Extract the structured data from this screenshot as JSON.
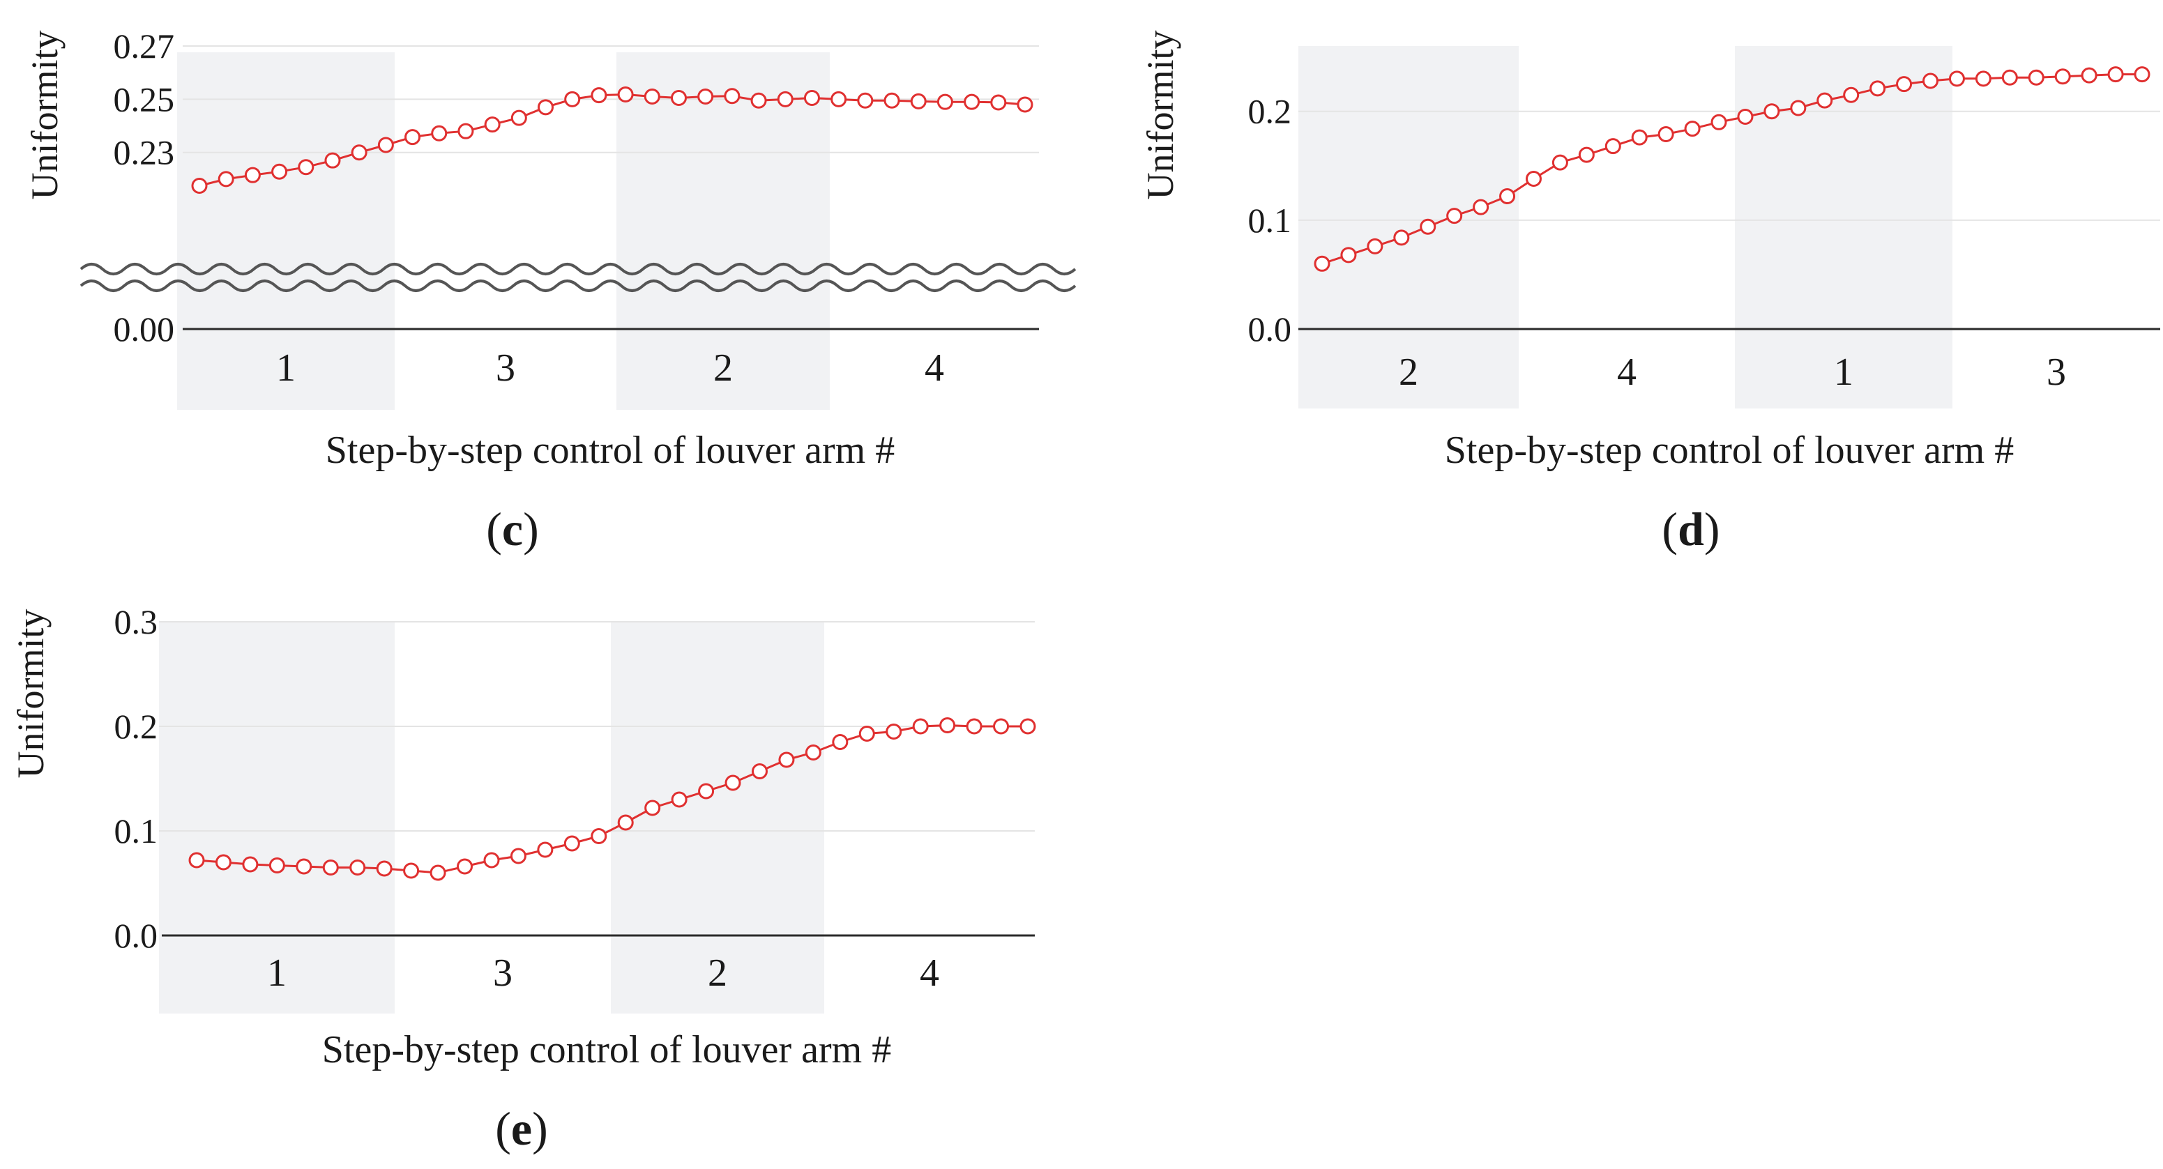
{
  "figure_captions": [
    "c",
    "d",
    "e"
  ],
  "colors": {
    "series": "#e03030",
    "band_fill": "#f1f2f4",
    "grid": "#e4e4e4",
    "axis": "#2a2a2a",
    "break_mark": "#555555"
  },
  "chart_data": [
    {
      "id": "c",
      "type": "line",
      "caption": "c",
      "xlabel": "Step-by-step control of louver arm #",
      "ylabel": "Uniformity",
      "ylim": [
        0.215,
        0.27
      ],
      "y_ticks": [
        "0.27",
        "0.25",
        "0.23"
      ],
      "y_tick_values": [
        0.27,
        0.25,
        0.23
      ],
      "y_break": true,
      "y_baseline_label": "0.00",
      "grid": true,
      "band_labels": [
        "1",
        "3",
        "2",
        "4"
      ],
      "band_shaded": [
        true,
        false,
        true,
        false
      ],
      "steps_per_band": 8,
      "x": [
        1,
        2,
        3,
        4,
        5,
        6,
        7,
        8,
        9,
        10,
        11,
        12,
        13,
        14,
        15,
        16,
        17,
        18,
        19,
        20,
        21,
        22,
        23,
        24,
        25,
        26,
        27,
        28,
        29,
        30,
        31,
        32
      ],
      "series": [
        {
          "name": "Uniformity",
          "values": [
            0.2175,
            0.22,
            0.2215,
            0.2228,
            0.2245,
            0.227,
            0.23,
            0.2328,
            0.2358,
            0.2372,
            0.238,
            0.2405,
            0.243,
            0.247,
            0.25,
            0.2515,
            0.2518,
            0.251,
            0.2505,
            0.251,
            0.2512,
            0.2495,
            0.25,
            0.2505,
            0.25,
            0.2495,
            0.2495,
            0.2492,
            0.249,
            0.249,
            0.2488,
            0.248
          ]
        }
      ]
    },
    {
      "id": "d",
      "type": "line",
      "caption": "d",
      "xlabel": "Step-by-step control of louver arm #",
      "ylabel": "Uniformity",
      "ylim": [
        0.0,
        0.26
      ],
      "y_ticks": [
        "0.2",
        "0.1",
        "0.0"
      ],
      "y_tick_values": [
        0.2,
        0.1,
        0.0
      ],
      "y_break": false,
      "grid": true,
      "band_labels": [
        "2",
        "4",
        "1",
        "3"
      ],
      "band_shaded": [
        true,
        false,
        true,
        false
      ],
      "steps_per_band": 8,
      "x": [
        1,
        2,
        3,
        4,
        5,
        6,
        7,
        8,
        9,
        10,
        11,
        12,
        13,
        14,
        15,
        16,
        17,
        18,
        19,
        20,
        21,
        22,
        23,
        24,
        25,
        26,
        27,
        28,
        29,
        30,
        31,
        32
      ],
      "series": [
        {
          "name": "Uniformity",
          "values": [
            0.06,
            0.068,
            0.076,
            0.084,
            0.094,
            0.104,
            0.112,
            0.122,
            0.138,
            0.153,
            0.16,
            0.168,
            0.176,
            0.179,
            0.184,
            0.19,
            0.195,
            0.2,
            0.203,
            0.21,
            0.215,
            0.221,
            0.225,
            0.228,
            0.23,
            0.23,
            0.231,
            0.231,
            0.232,
            0.233,
            0.234,
            0.234
          ]
        }
      ]
    },
    {
      "id": "e",
      "type": "line",
      "caption": "e",
      "xlabel": "Step-by-step control of louver arm #",
      "ylabel": "Uniformity",
      "ylim": [
        0.0,
        0.3
      ],
      "y_ticks": [
        "0.3",
        "0.2",
        "0.1",
        "0.0"
      ],
      "y_tick_values": [
        0.3,
        0.2,
        0.1,
        0.0
      ],
      "y_break": false,
      "grid": true,
      "band_labels": [
        "1",
        "3",
        "2",
        "4"
      ],
      "band_shaded": [
        true,
        false,
        true,
        false
      ],
      "steps_per_band": 8,
      "x": [
        1,
        2,
        3,
        4,
        5,
        6,
        7,
        8,
        9,
        10,
        11,
        12,
        13,
        14,
        15,
        16,
        17,
        18,
        19,
        20,
        21,
        22,
        23,
        24,
        25,
        26,
        27,
        28,
        29,
        30,
        31,
        32
      ],
      "series": [
        {
          "name": "Uniformity",
          "values": [
            0.072,
            0.07,
            0.068,
            0.067,
            0.066,
            0.065,
            0.065,
            0.064,
            0.062,
            0.06,
            0.066,
            0.072,
            0.076,
            0.082,
            0.088,
            0.095,
            0.108,
            0.122,
            0.13,
            0.138,
            0.146,
            0.157,
            0.168,
            0.175,
            0.185,
            0.193,
            0.195,
            0.2,
            0.201,
            0.2,
            0.2,
            0.2
          ]
        }
      ]
    }
  ]
}
